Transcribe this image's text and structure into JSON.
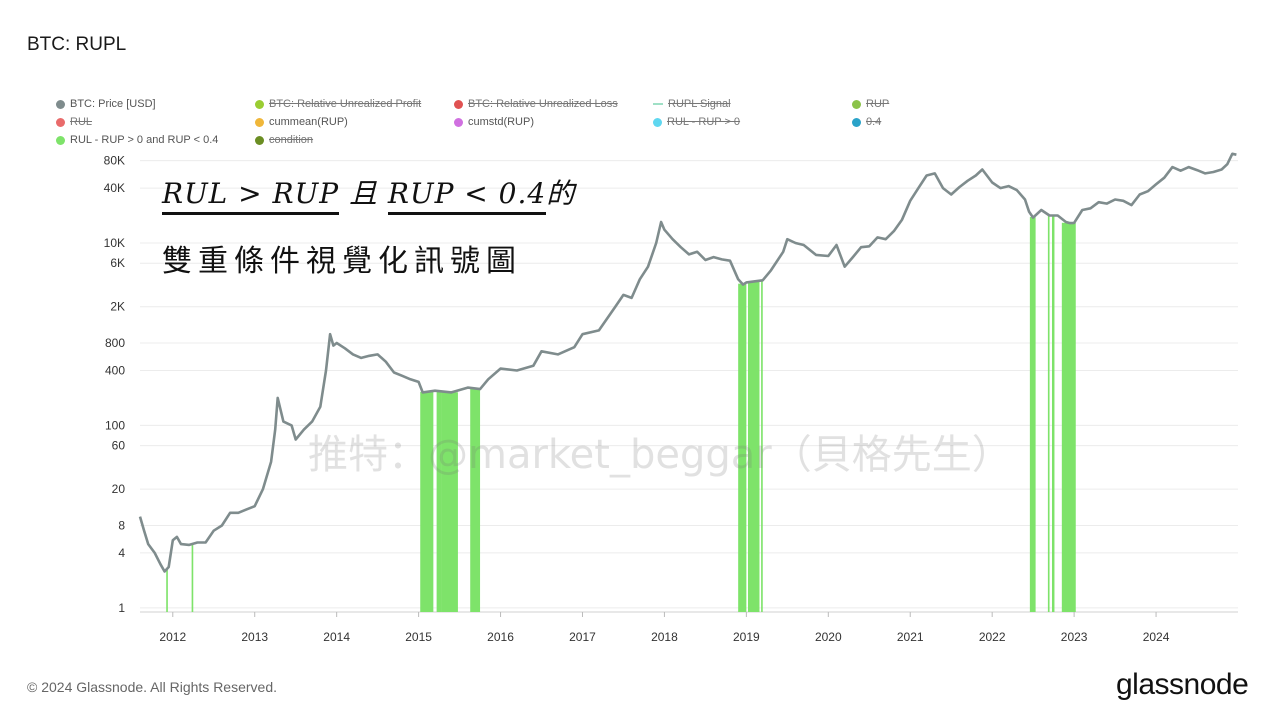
{
  "header": {
    "title": "BTC: RUPL"
  },
  "legend": [
    {
      "label": "BTC: Price [USD]",
      "color": "#7f8c8d",
      "enabled": true,
      "marker": "dot"
    },
    {
      "label": "BTC: Relative Unrealized Profit",
      "color": "#9acd32",
      "enabled": false,
      "marker": "dot"
    },
    {
      "label": "BTC: Relative Unrealized Loss",
      "color": "#e05252",
      "enabled": false,
      "marker": "dot"
    },
    {
      "label": "RUPL Signal",
      "color": "#9fe0c6",
      "enabled": false,
      "marker": "line"
    },
    {
      "label": "RUP",
      "color": "#8bc34a",
      "enabled": false,
      "marker": "dot"
    },
    {
      "label": "RUL",
      "color": "#e96b6b",
      "enabled": false,
      "marker": "dot"
    },
    {
      "label": "cummean(RUP)",
      "color": "#f0b73a",
      "enabled": true,
      "marker": "dot"
    },
    {
      "label": "cumstd(RUP)",
      "color": "#d070e0",
      "enabled": true,
      "marker": "dot"
    },
    {
      "label": "RUL - RUP > 0",
      "color": "#5fd7f0",
      "enabled": false,
      "marker": "dot"
    },
    {
      "label": "0.4",
      "color": "#2aa3c9",
      "enabled": false,
      "marker": "dot"
    },
    {
      "label": "RUL - RUP > 0 and RUP < 0.4",
      "color": "#7ee36a",
      "enabled": true,
      "marker": "dot"
    },
    {
      "label": "condition",
      "color": "#6b8e23",
      "enabled": false,
      "marker": "dot"
    }
  ],
  "annotation": {
    "part1": "RUL > RUP",
    "part2": "且",
    "part3": "RUP < 0.4",
    "part4": "的",
    "line2": "雙重條件視覺化訊號圖"
  },
  "watermark": "推特：@market_beggar（貝格先生）",
  "footer": {
    "copyright": "© 2024 Glassnode. All Rights Reserved.",
    "brand": "glassnode"
  },
  "chart_data": {
    "type": "line",
    "yscale": "log",
    "y_ticks": [
      1,
      4,
      8,
      20,
      60,
      100,
      400,
      800,
      2000,
      6000,
      10000,
      40000,
      80000
    ],
    "y_tick_labels": [
      "1",
      "4",
      "8",
      "20",
      "60",
      "100",
      "400",
      "800",
      "2K",
      "6K",
      "10K",
      "40K",
      "80K"
    ],
    "x_ticks": [
      2012,
      2013,
      2014,
      2015,
      2016,
      2017,
      2018,
      2019,
      2020,
      2021,
      2022,
      2023,
      2024
    ],
    "x_tick_labels": [
      "2012",
      "2013",
      "2014",
      "2015",
      "2016",
      "2017",
      "2018",
      "2019",
      "2020",
      "2021",
      "2022",
      "2023",
      "2024"
    ],
    "xlim": [
      2011.6,
      2025.0
    ],
    "ylim": [
      0.9,
      110000
    ],
    "series": [
      {
        "name": "BTC: Price [USD]",
        "color": "#7f8c8d",
        "x": [
          2011.6,
          2011.65,
          2011.7,
          2011.78,
          2011.85,
          2011.9,
          2011.95,
          2012.0,
          2012.05,
          2012.1,
          2012.2,
          2012.3,
          2012.4,
          2012.5,
          2012.6,
          2012.7,
          2012.8,
          2012.9,
          2013.0,
          2013.1,
          2013.2,
          2013.25,
          2013.28,
          2013.35,
          2013.45,
          2013.5,
          2013.6,
          2013.7,
          2013.8,
          2013.87,
          2013.92,
          2013.96,
          2014.0,
          2014.1,
          2014.2,
          2014.3,
          2014.4,
          2014.5,
          2014.6,
          2014.7,
          2014.8,
          2014.9,
          2015.0,
          2015.05,
          2015.2,
          2015.4,
          2015.6,
          2015.75,
          2015.85,
          2016.0,
          2016.2,
          2016.4,
          2016.5,
          2016.7,
          2016.9,
          2017.0,
          2017.2,
          2017.4,
          2017.5,
          2017.6,
          2017.7,
          2017.8,
          2017.9,
          2017.96,
          2018.0,
          2018.1,
          2018.2,
          2018.3,
          2018.4,
          2018.5,
          2018.6,
          2018.7,
          2018.8,
          2018.9,
          2018.96,
          2019.0,
          2019.2,
          2019.3,
          2019.45,
          2019.5,
          2019.6,
          2019.7,
          2019.85,
          2020.0,
          2020.1,
          2020.2,
          2020.3,
          2020.4,
          2020.5,
          2020.6,
          2020.7,
          2020.8,
          2020.9,
          2021.0,
          2021.1,
          2021.2,
          2021.3,
          2021.4,
          2021.5,
          2021.6,
          2021.7,
          2021.8,
          2021.88,
          2022.0,
          2022.1,
          2022.2,
          2022.3,
          2022.4,
          2022.45,
          2022.5,
          2022.6,
          2022.7,
          2022.8,
          2022.9,
          2022.95,
          2023.0,
          2023.1,
          2023.2,
          2023.3,
          2023.4,
          2023.5,
          2023.6,
          2023.7,
          2023.8,
          2023.9,
          2024.0,
          2024.1,
          2024.2,
          2024.3,
          2024.4,
          2024.5,
          2024.6,
          2024.7,
          2024.8,
          2024.87,
          2024.93,
          2024.98
        ],
        "y": [
          10,
          7,
          5,
          4,
          3,
          2.5,
          2.8,
          5.5,
          6,
          5,
          4.9,
          5.2,
          5.2,
          7,
          8,
          11,
          11,
          12,
          13,
          20,
          40,
          90,
          200,
          110,
          100,
          70,
          90,
          110,
          160,
          400,
          1000,
          750,
          800,
          700,
          600,
          550,
          580,
          600,
          500,
          380,
          350,
          320,
          300,
          230,
          240,
          230,
          260,
          250,
          320,
          420,
          400,
          450,
          650,
          600,
          720,
          1000,
          1100,
          2000,
          2700,
          2500,
          4000,
          5500,
          10000,
          17000,
          14000,
          11000,
          9000,
          7500,
          8000,
          6500,
          7000,
          6600,
          6400,
          4000,
          3500,
          3700,
          3900,
          5000,
          8000,
          11000,
          10000,
          9500,
          7400,
          7200,
          9500,
          5500,
          7000,
          9000,
          9200,
          11500,
          11000,
          13500,
          18000,
          29000,
          40000,
          55000,
          58000,
          40000,
          34000,
          41000,
          48000,
          55000,
          64000,
          46000,
          40000,
          42000,
          38000,
          30000,
          22000,
          19000,
          23000,
          20000,
          20000,
          17000,
          16500,
          16600,
          23000,
          24000,
          28000,
          27000,
          30000,
          29000,
          26000,
          34000,
          37000,
          44000,
          52000,
          68000,
          62000,
          68000,
          63000,
          58000,
          60000,
          64000,
          73000,
          95000,
          93000
        ]
      }
    ],
    "signal_zones": [
      {
        "name": "RUL - RUP > 0 and RUP < 0.4",
        "color": "#7ee36a",
        "ranges": [
          [
            2011.92,
            2011.94
          ],
          [
            2012.23,
            2012.25
          ],
          [
            2015.02,
            2015.18
          ],
          [
            2015.22,
            2015.28
          ],
          [
            2015.28,
            2015.48
          ],
          [
            2015.63,
            2015.75
          ],
          [
            2018.9,
            2019.0
          ],
          [
            2019.02,
            2019.16
          ],
          [
            2019.18,
            2019.2
          ],
          [
            2022.46,
            2022.53
          ],
          [
            2022.68,
            2022.7
          ],
          [
            2022.73,
            2022.76
          ],
          [
            2022.85,
            2023.02
          ]
        ]
      }
    ]
  }
}
